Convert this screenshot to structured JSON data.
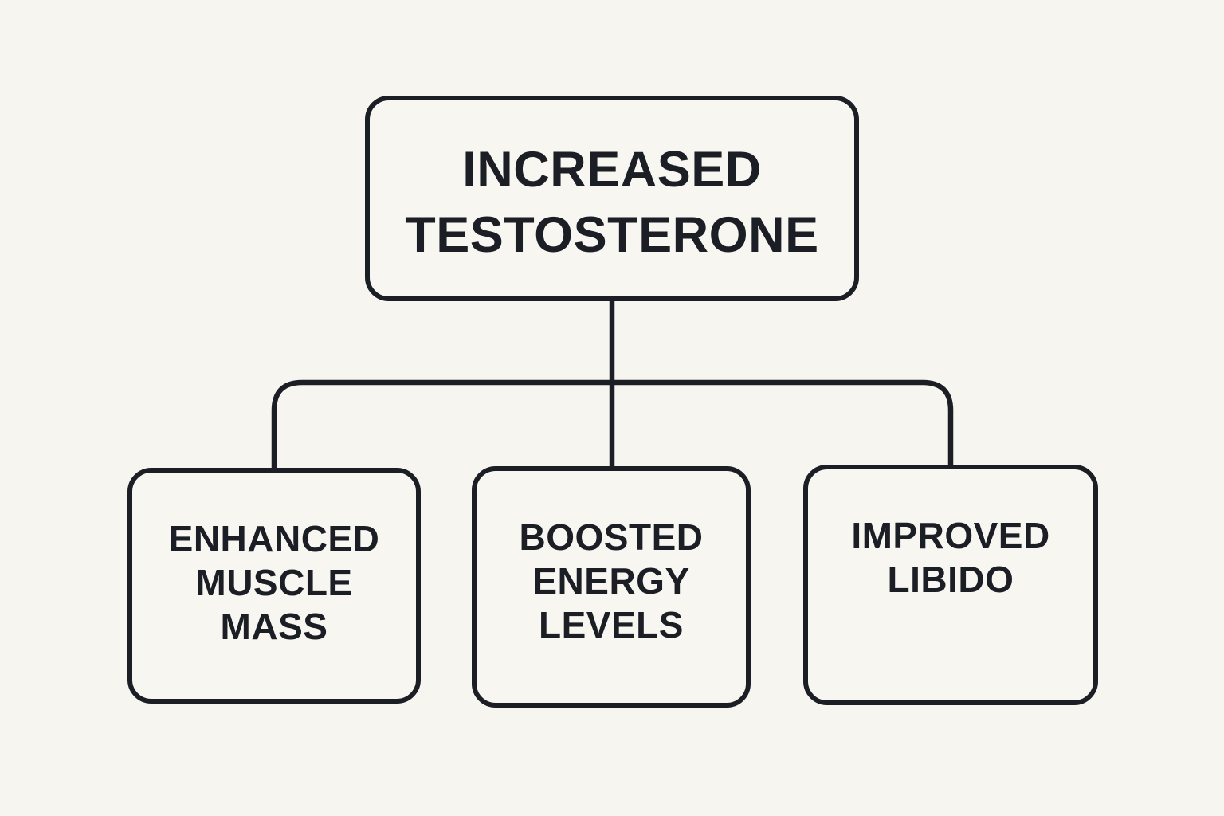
{
  "diagram": {
    "title": "Increased testosterone effects flowchart",
    "colors": {
      "background": "#f7f5f0",
      "ink": "#1b1e25"
    },
    "root": {
      "label": "INCREASED TESTOSTERONE",
      "lines": [
        "INCREASED",
        "TESTOSTERONE"
      ]
    },
    "children": [
      {
        "label": "ENHANCED MUSCLE MASS",
        "lines": [
          "ENHANCED",
          "MUSCLE",
          "MASS"
        ]
      },
      {
        "label": "BOOSTED ENERGY LEVELS",
        "lines": [
          "BOOSTED",
          "ENERGY",
          "LEVELS"
        ]
      },
      {
        "label": "IMPROVED LIBIDO",
        "lines": [
          "IMPROVED",
          "LIBIDO"
        ]
      }
    ]
  }
}
